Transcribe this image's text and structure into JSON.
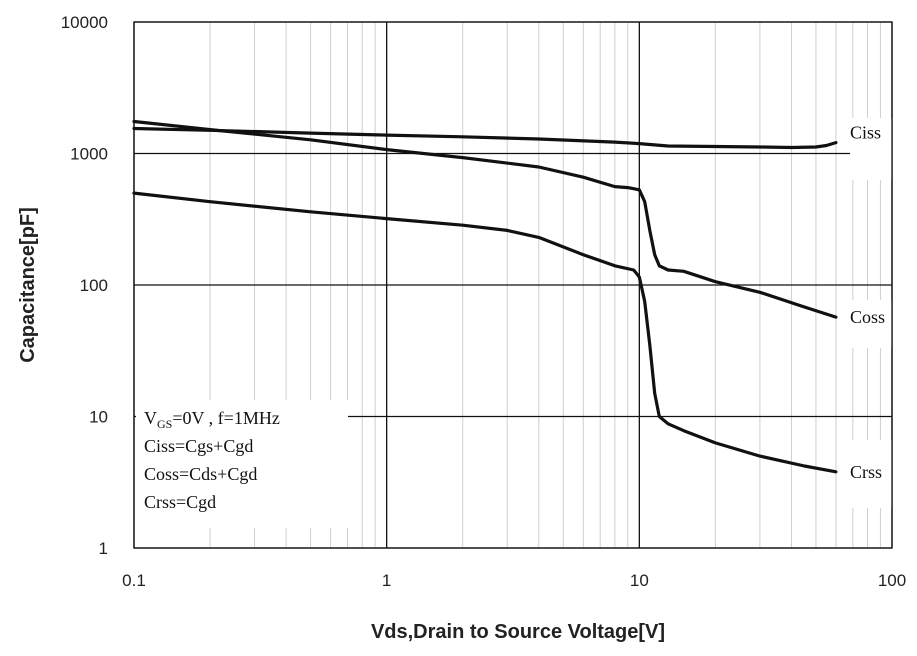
{
  "chart_data": {
    "type": "line",
    "xlabel": "Vds,Drain to Source Voltage[V]",
    "ylabel": "Capacitance[pF]",
    "xscale": "log",
    "yscale": "log",
    "xlim": [
      0.1,
      100
    ],
    "ylim": [
      1,
      10000
    ],
    "xticks": [
      "0.1",
      "1",
      "10",
      "100"
    ],
    "yticks": [
      "1",
      "10",
      "100",
      "1000",
      "10000"
    ],
    "grid": true,
    "series": [
      {
        "name": "Ciss",
        "x": [
          0.1,
          0.2,
          0.5,
          1,
          2,
          4,
          8,
          10,
          13,
          20,
          30,
          40,
          50,
          55,
          60
        ],
        "y": [
          1550,
          1500,
          1430,
          1380,
          1340,
          1290,
          1220,
          1190,
          1140,
          1130,
          1120,
          1110,
          1120,
          1150,
          1210
        ]
      },
      {
        "name": "Coss",
        "x": [
          0.1,
          0.2,
          0.5,
          1,
          2,
          4,
          6,
          8,
          9,
          10,
          10.5,
          11,
          11.5,
          12,
          13,
          15,
          20,
          30,
          45,
          60
        ],
        "y": [
          1750,
          1520,
          1270,
          1070,
          930,
          790,
          660,
          560,
          550,
          530,
          430,
          260,
          170,
          140,
          130,
          127,
          106,
          88,
          68,
          57
        ]
      },
      {
        "name": "Crss",
        "x": [
          0.1,
          0.2,
          0.5,
          1,
          2,
          3,
          4,
          6,
          8,
          9.5,
          10,
          10.5,
          11,
          11.5,
          12,
          13,
          15,
          20,
          30,
          45,
          60
        ],
        "y": [
          500,
          430,
          360,
          320,
          285,
          260,
          230,
          170,
          140,
          130,
          115,
          75,
          35,
          15,
          10,
          8.8,
          7.8,
          6.3,
          5,
          4.2,
          3.8
        ]
      }
    ],
    "annotations": [
      {
        "prefix": "V",
        "sub": "GS",
        "suffix": "=0V , f=1MHz"
      },
      {
        "text": "Ciss=Cgs+Cgd"
      },
      {
        "text": "Coss=Cds+Cgd"
      },
      {
        "text": "Crss=Cgd"
      }
    ],
    "colors": {
      "series": "#111111",
      "major_grid": "#111111",
      "minor_grid": "#cfcfcf"
    }
  }
}
